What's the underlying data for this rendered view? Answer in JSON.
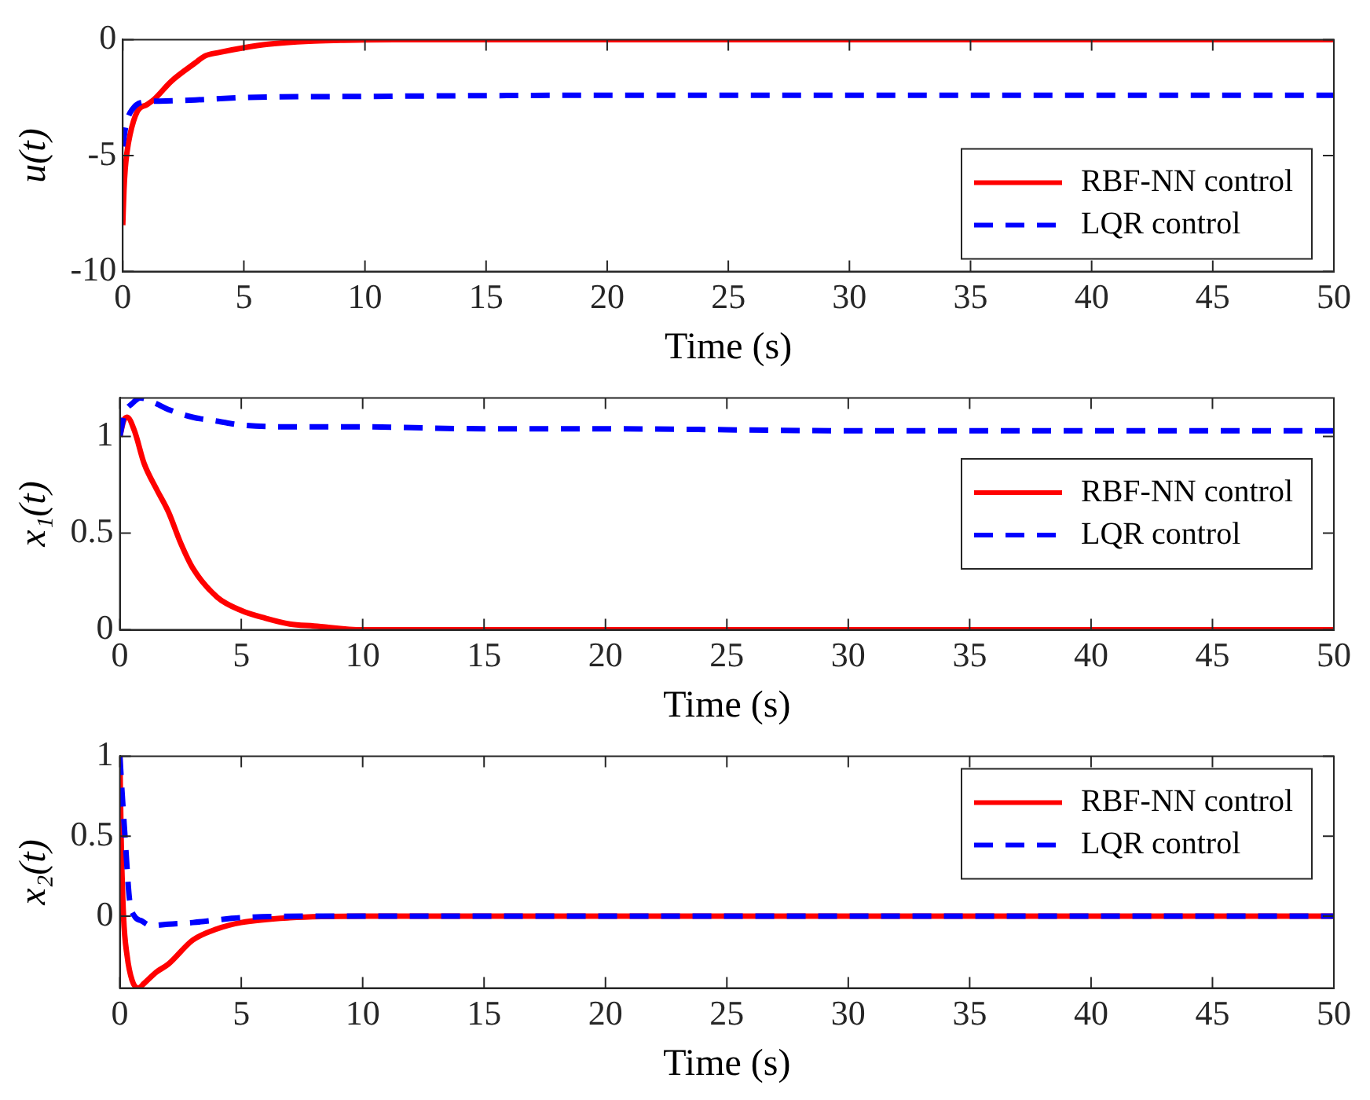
{
  "chart_data": [
    {
      "type": "line",
      "xlabel": "Time (s)",
      "ylabel": "u(t)",
      "xlim": [
        0,
        50
      ],
      "xticks": [
        0,
        5,
        10,
        15,
        20,
        25,
        30,
        35,
        40,
        45,
        50
      ],
      "ylim": [
        -10,
        0
      ],
      "yticks": [
        -10,
        -5,
        0
      ],
      "grid": false,
      "legend": "bottom right",
      "marker": "none",
      "series": [
        {
          "name": "RBF-NN control",
          "color": "#ff0000",
          "line_style": "solid",
          "x": [
            0,
            0.05,
            0.1,
            0.17,
            0.3,
            0.6,
            1,
            1.3,
            2,
            3,
            3.4,
            4,
            5,
            6,
            7.7,
            9,
            10,
            15,
            20,
            30,
            40,
            50
          ],
          "values": [
            -8,
            -6.5,
            -5.6,
            -4.9,
            -4.1,
            -3.1,
            -2.8,
            -2.57,
            -1.8,
            -1.0,
            -0.7,
            -0.55,
            -0.35,
            -0.2,
            -0.07,
            -0.03,
            -0.01,
            0,
            0,
            0,
            0,
            0
          ]
        },
        {
          "name": "LQR control",
          "color": "#0000ff",
          "line_style": "dashed",
          "x": [
            0,
            0.15,
            0.4,
            0.8,
            1.5,
            3,
            5,
            10,
            20,
            30,
            40,
            50
          ],
          "values": [
            -4.6,
            -3.6,
            -3.0,
            -2.7,
            -2.65,
            -2.6,
            -2.5,
            -2.45,
            -2.4,
            -2.4,
            -2.4,
            -2.4
          ]
        }
      ]
    },
    {
      "type": "line",
      "xlabel": "Time (s)",
      "ylabel": "x₁(t)",
      "xlim": [
        0,
        50
      ],
      "xticks": [
        0,
        5,
        10,
        15,
        20,
        25,
        30,
        35,
        40,
        45,
        50
      ],
      "ylim": [
        0,
        1.2
      ],
      "yticks": [
        0,
        0.5,
        1
      ],
      "grid": false,
      "legend": "right",
      "marker": "none",
      "series": [
        {
          "name": "RBF-NN control",
          "color": "#ff0000",
          "line_style": "solid",
          "x": [
            0,
            0.15,
            0.3,
            0.6,
            1,
            1.5,
            2,
            2.5,
            3,
            4,
            5,
            6,
            7,
            8,
            10,
            15,
            20,
            30,
            40,
            50
          ],
          "values": [
            1,
            1.08,
            1.1,
            1.03,
            0.86,
            0.73,
            0.61,
            0.45,
            0.32,
            0.17,
            0.1,
            0.06,
            0.03,
            0.02,
            0,
            0,
            0,
            0,
            0,
            0
          ]
        },
        {
          "name": "LQR control",
          "color": "#0000ff",
          "line_style": "dashed",
          "x": [
            0,
            0.2,
            0.5,
            0.85,
            1.5,
            2,
            3,
            4,
            5,
            7,
            10,
            15,
            20,
            30,
            40,
            50
          ],
          "values": [
            1,
            1.12,
            1.17,
            1.2,
            1.17,
            1.14,
            1.1,
            1.08,
            1.06,
            1.05,
            1.05,
            1.04,
            1.04,
            1.03,
            1.03,
            1.03
          ]
        }
      ]
    },
    {
      "type": "line",
      "xlabel": "Time (s)",
      "ylabel": "x₂(t)",
      "xlim": [
        0,
        50
      ],
      "xticks": [
        0,
        5,
        10,
        15,
        20,
        25,
        30,
        35,
        40,
        45,
        50
      ],
      "ylim": [
        -0.45,
        1
      ],
      "yticks": [
        0,
        0.5,
        1
      ],
      "grid": false,
      "legend": "top right",
      "marker": "none",
      "series": [
        {
          "name": "RBF-NN control",
          "color": "#ff0000",
          "line_style": "solid",
          "x": [
            0,
            0.05,
            0.15,
            0.3,
            0.5,
            0.75,
            1,
            1.5,
            2,
            3,
            4,
            5,
            7,
            10,
            15,
            20,
            30,
            40,
            50
          ],
          "values": [
            1,
            0.5,
            0,
            -0.25,
            -0.4,
            -0.45,
            -0.42,
            -0.35,
            -0.3,
            -0.15,
            -0.08,
            -0.04,
            -0.01,
            0,
            0,
            0,
            0,
            0,
            0
          ]
        },
        {
          "name": "LQR control",
          "color": "#0000ff",
          "line_style": "dashed",
          "x": [
            0,
            0.1,
            0.21,
            0.4,
            0.6,
            0.9,
            1.3,
            2,
            3,
            5,
            8,
            10,
            20,
            30,
            40,
            50
          ],
          "values": [
            1,
            0.75,
            0.5,
            0.1,
            0.0,
            -0.03,
            -0.06,
            -0.05,
            -0.04,
            -0.01,
            0,
            0,
            0,
            0,
            0,
            0
          ]
        }
      ]
    }
  ]
}
